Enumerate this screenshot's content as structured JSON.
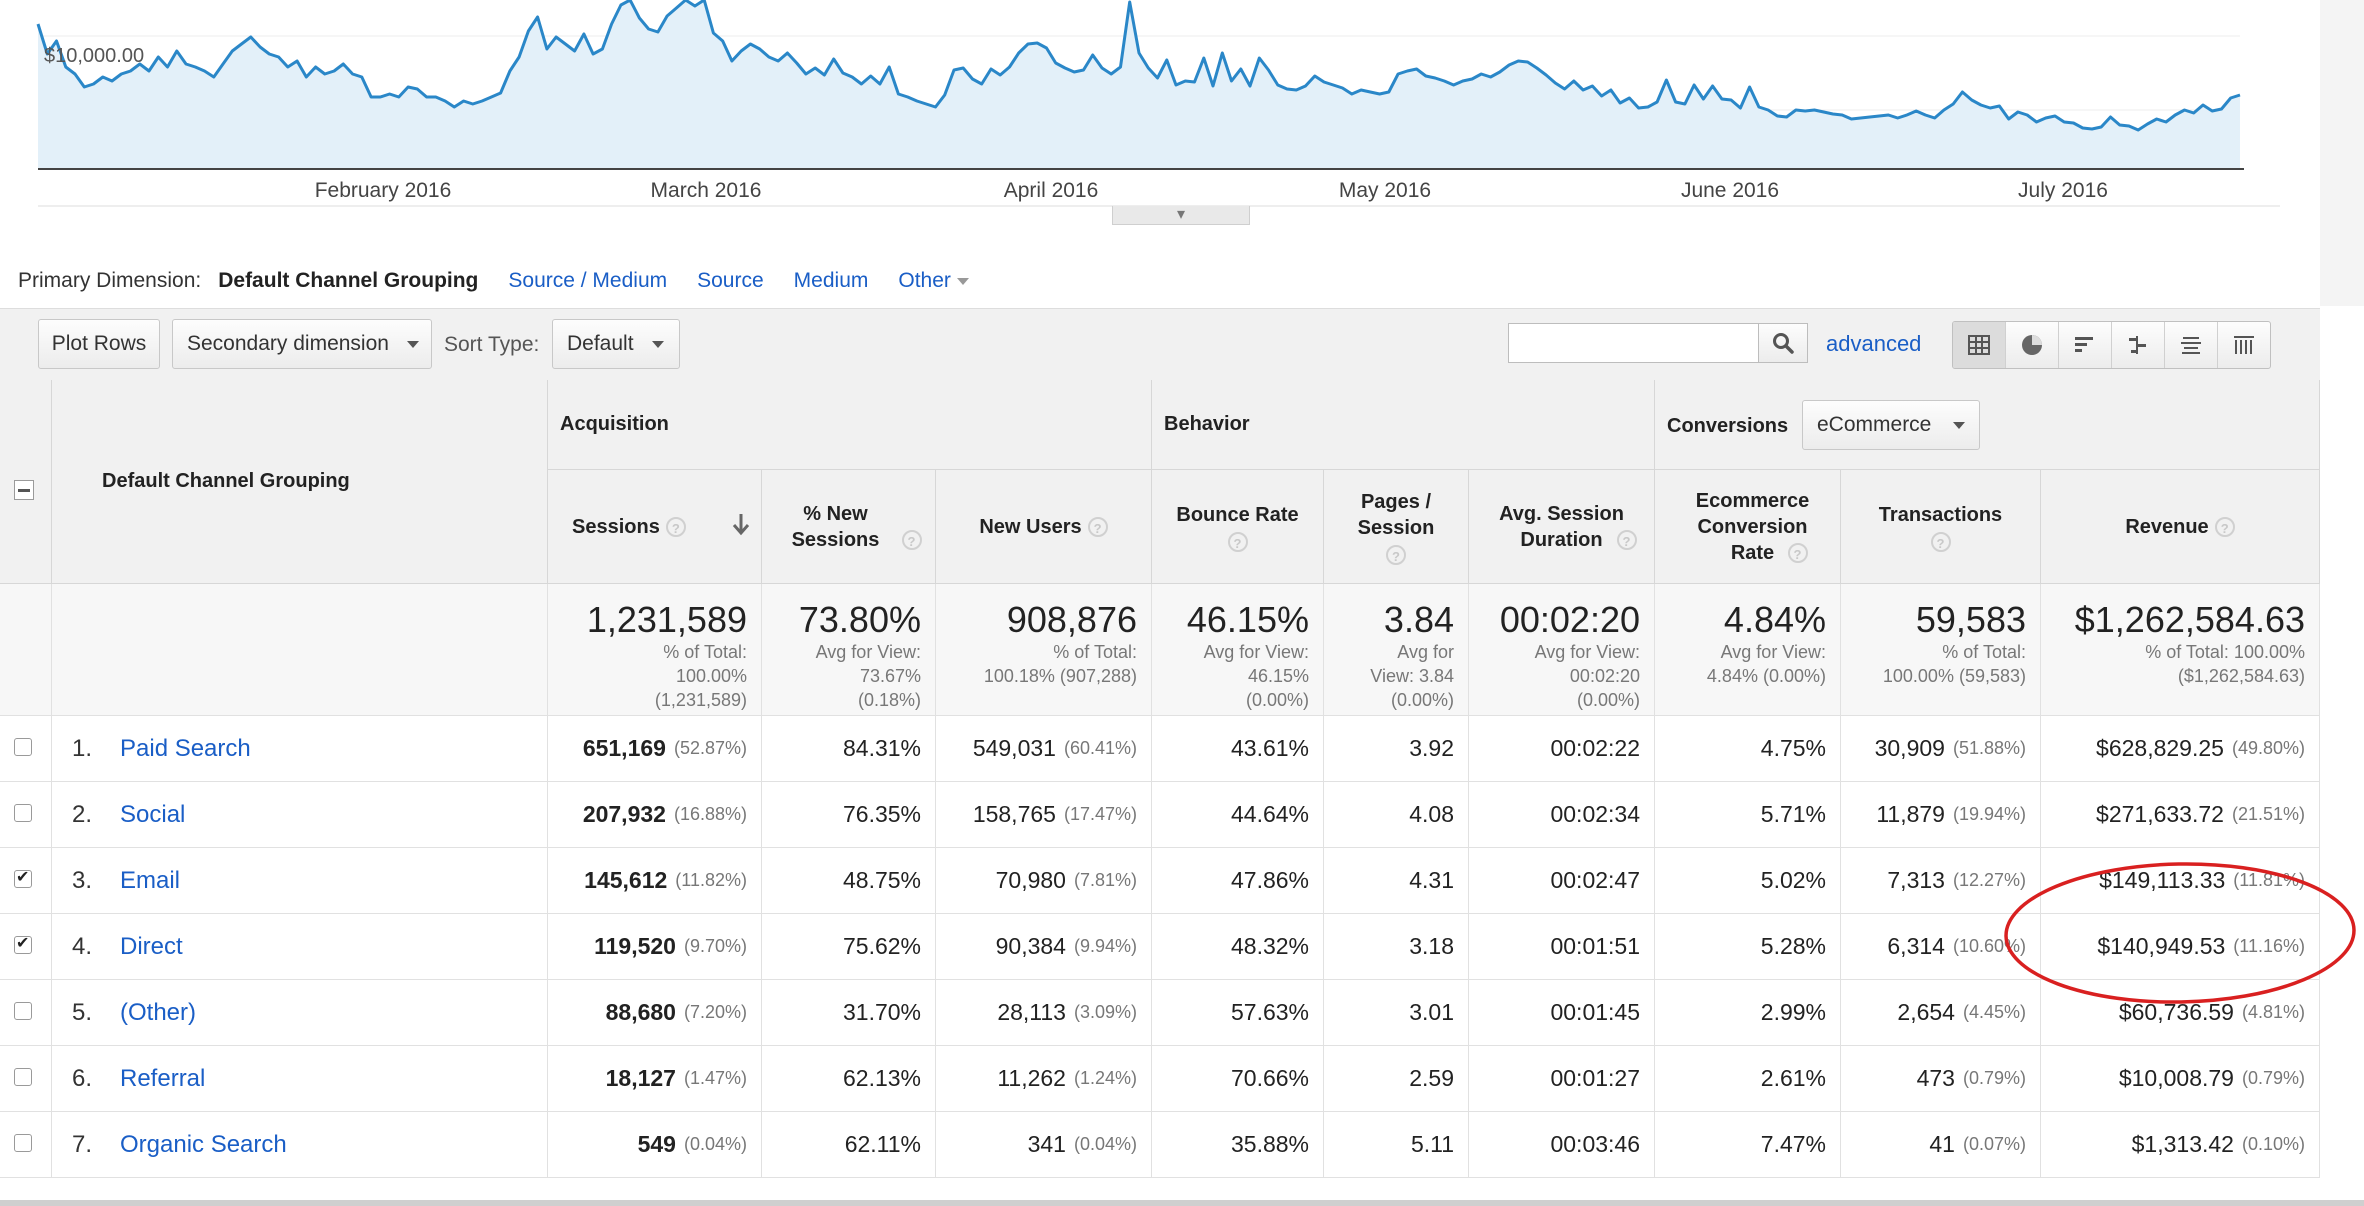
{
  "chart": {
    "y_label": "$10,000.00",
    "months": [
      "February 2016",
      "March 2016",
      "April 2016",
      "May 2016",
      "June 2016",
      "July 2016"
    ],
    "line_color": "#2a87c8",
    "fill_color": "#e3f0f9",
    "values": [
      14.5,
      11.5,
      12.8,
      10.2,
      9.5,
      8.2,
      8.5,
      9.2,
      8.8,
      9.5,
      9.8,
      10.5,
      9.8,
      11.2,
      10.2,
      11.8,
      10.5,
      10.2,
      9.8,
      9.2,
      10.5,
      11.8,
      12.5,
      13.2,
      12.2,
      11.5,
      11.2,
      10.2,
      10.8,
      9.2,
      10.2,
      9.5,
      9.8,
      10.5,
      9.5,
      9.2,
      7.2,
      7.2,
      7.5,
      7.2,
      8.2,
      8.0,
      7.2,
      7.2,
      6.8,
      6.2,
      6.8,
      6.5,
      6.8,
      7.2,
      7.6,
      9.8,
      11.2,
      13.8,
      15.2,
      12.0,
      13.2,
      12.5,
      11.8,
      13.5,
      11.5,
      12.0,
      14.5,
      16.4,
      17.1,
      15.1,
      14.0,
      13.7,
      15.3,
      16.1,
      17.2,
      16.3,
      17.1,
      13.6,
      12.8,
      10.8,
      11.8,
      12.5,
      12.0,
      11.2,
      10.8,
      11.6,
      10.6,
      9.5,
      10.1,
      9.4,
      11.0,
      9.6,
      9.2,
      8.5,
      9.3,
      8.5,
      10.2,
      7.5,
      7.2,
      6.8,
      6.5,
      6.2,
      7.4,
      9.9,
      10.1,
      9.0,
      8.5,
      10.0,
      9.4,
      10.2,
      11.6,
      12.5,
      12.6,
      12.1,
      10.6,
      10.1,
      9.7,
      9.9,
      11.4,
      10.1,
      9.5,
      10.2,
      16.7,
      11.6,
      10.1,
      9.1,
      10.9,
      8.4,
      8.8,
      8.7,
      11.1,
      8.3,
      11.6,
      8.8,
      10.0,
      8.3,
      11.1,
      9.9,
      8.4,
      8.0,
      7.9,
      8.3,
      9.3,
      8.7,
      8.4,
      8.1,
      7.5,
      7.9,
      7.7,
      7.5,
      7.7,
      9.5,
      9.8,
      10.0,
      9.3,
      9.1,
      8.8,
      8.4,
      8.8,
      9.0,
      9.5,
      9.2,
      9.7,
      10.4,
      10.8,
      10.7,
      10.1,
      9.4,
      8.6,
      8.0,
      8.8,
      7.9,
      8.3,
      7.3,
      7.9,
      6.6,
      7.1,
      6.1,
      6.2,
      6.7,
      8.9,
      6.7,
      6.5,
      8.4,
      7.0,
      8.3,
      7.0,
      6.9,
      6.1,
      8.2,
      6.2,
      5.9,
      5.3,
      5.2,
      5.9,
      5.8,
      5.9,
      5.7,
      5.5,
      5.4,
      5.0,
      5.1,
      5.2,
      5.3,
      5.4,
      5.1,
      5.4,
      5.8,
      5.4,
      5.1,
      5.9,
      6.5,
      7.7,
      6.9,
      6.4,
      6.1,
      6.3,
      5.0,
      5.7,
      5.4,
      4.7,
      5.1,
      5.3,
      4.7,
      4.6,
      4.1,
      4.0,
      4.2,
      5.2,
      4.4,
      4.3,
      3.9,
      4.5,
      5.0,
      4.7,
      5.4,
      5.9,
      5.6,
      6.4,
      5.8,
      6.0,
      7.1,
      7.4
    ]
  },
  "primary_dimension": {
    "label": "Primary Dimension:",
    "active": "Default Channel Grouping",
    "links": [
      "Source / Medium",
      "Source",
      "Medium"
    ],
    "other": "Other"
  },
  "toolbar": {
    "plot_rows": "Plot Rows",
    "secondary_dimension": "Secondary dimension",
    "sort_type_label": "Sort Type:",
    "sort_type_value": "Default",
    "search_placeholder": "",
    "advanced": "advanced"
  },
  "table": {
    "dimension_header": "Default Channel Grouping",
    "groups": {
      "acquisition": "Acquisition",
      "behavior": "Behavior",
      "conversions": "Conversions"
    },
    "conversions_select": "eCommerce",
    "columns": {
      "sessions": "Sessions",
      "pct_new_sessions": "% New Sessions",
      "new_users": "New Users",
      "bounce_rate": "Bounce Rate",
      "pages_session": "Pages / Session",
      "avg_duration": "Avg. Session Duration",
      "ecom_conv": "Ecommerce Conversion Rate",
      "transactions": "Transactions",
      "revenue": "Revenue"
    },
    "totals": {
      "sessions": {
        "value": "1,231,589",
        "sub": [
          "% of Total:",
          "100.00%",
          "(1,231,589)"
        ]
      },
      "pct_new_sessions": {
        "value": "73.80%",
        "sub": [
          "Avg for View:",
          "73.67%",
          "(0.18%)"
        ]
      },
      "new_users": {
        "value": "908,876",
        "sub": [
          "% of Total:",
          "100.18% (907,288)"
        ]
      },
      "bounce_rate": {
        "value": "46.15%",
        "sub": [
          "Avg for View:",
          "46.15%",
          "(0.00%)"
        ]
      },
      "pages_session": {
        "value": "3.84",
        "sub": [
          "Avg for",
          "View: 3.84",
          "(0.00%)"
        ]
      },
      "avg_duration": {
        "value": "00:02:20",
        "sub": [
          "Avg for View:",
          "00:02:20",
          "(0.00%)"
        ]
      },
      "ecom_conv": {
        "value": "4.84%",
        "sub": [
          "Avg for View:",
          "4.84% (0.00%)"
        ]
      },
      "transactions": {
        "value": "59,583",
        "sub": [
          "% of Total:",
          "100.00% (59,583)"
        ]
      },
      "revenue": {
        "value": "$1,262,584.63",
        "sub": [
          "% of Total: 100.00%",
          "($1,262,584.63)"
        ]
      }
    },
    "rows": [
      {
        "idx": "1.",
        "name": "Paid Search",
        "checked": false,
        "sessions": "651,169",
        "sessions_pct": "(52.87%)",
        "pct_new": "84.31%",
        "new_users": "549,031",
        "new_users_pct": "(60.41%)",
        "bounce": "43.61%",
        "pages": "3.92",
        "duration": "00:02:22",
        "conv": "4.75%",
        "trans": "30,909",
        "trans_pct": "(51.88%)",
        "revenue": "$628,829.25",
        "revenue_pct": "(49.80%)"
      },
      {
        "idx": "2.",
        "name": "Social",
        "checked": false,
        "sessions": "207,932",
        "sessions_pct": "(16.88%)",
        "pct_new": "76.35%",
        "new_users": "158,765",
        "new_users_pct": "(17.47%)",
        "bounce": "44.64%",
        "pages": "4.08",
        "duration": "00:02:34",
        "conv": "5.71%",
        "trans": "11,879",
        "trans_pct": "(19.94%)",
        "revenue": "$271,633.72",
        "revenue_pct": "(21.51%)"
      },
      {
        "idx": "3.",
        "name": "Email",
        "checked": true,
        "sessions": "145,612",
        "sessions_pct": "(11.82%)",
        "pct_new": "48.75%",
        "new_users": "70,980",
        "new_users_pct": "(7.81%)",
        "bounce": "47.86%",
        "pages": "4.31",
        "duration": "00:02:47",
        "conv": "5.02%",
        "trans": "7,313",
        "trans_pct": "(12.27%)",
        "revenue": "$149,113.33",
        "revenue_pct": "(11.81%)"
      },
      {
        "idx": "4.",
        "name": "Direct",
        "checked": true,
        "sessions": "119,520",
        "sessions_pct": "(9.70%)",
        "pct_new": "75.62%",
        "new_users": "90,384",
        "new_users_pct": "(9.94%)",
        "bounce": "48.32%",
        "pages": "3.18",
        "duration": "00:01:51",
        "conv": "5.28%",
        "trans": "6,314",
        "trans_pct": "(10.60%)",
        "revenue": "$140,949.53",
        "revenue_pct": "(11.16%)"
      },
      {
        "idx": "5.",
        "name": "(Other)",
        "checked": false,
        "sessions": "88,680",
        "sessions_pct": "(7.20%)",
        "pct_new": "31.70%",
        "new_users": "28,113",
        "new_users_pct": "(3.09%)",
        "bounce": "57.63%",
        "pages": "3.01",
        "duration": "00:01:45",
        "conv": "2.99%",
        "trans": "2,654",
        "trans_pct": "(4.45%)",
        "revenue": "$60,736.59",
        "revenue_pct": "(4.81%)"
      },
      {
        "idx": "6.",
        "name": "Referral",
        "checked": false,
        "sessions": "18,127",
        "sessions_pct": "(1.47%)",
        "pct_new": "62.13%",
        "new_users": "11,262",
        "new_users_pct": "(1.24%)",
        "bounce": "70.66%",
        "pages": "2.59",
        "duration": "00:01:27",
        "conv": "2.61%",
        "trans": "473",
        "trans_pct": "(0.79%)",
        "revenue": "$10,008.79",
        "revenue_pct": "(0.79%)"
      },
      {
        "idx": "7.",
        "name": "Organic Search",
        "checked": false,
        "sessions": "549",
        "sessions_pct": "(0.04%)",
        "pct_new": "62.11%",
        "new_users": "341",
        "new_users_pct": "(0.04%)",
        "bounce": "35.88%",
        "pages": "5.11",
        "duration": "00:03:46",
        "conv": "7.47%",
        "trans": "41",
        "trans_pct": "(0.07%)",
        "revenue": "$1,313.42",
        "revenue_pct": "(0.10%)"
      }
    ]
  },
  "annotation": {
    "color": "#d92020"
  }
}
